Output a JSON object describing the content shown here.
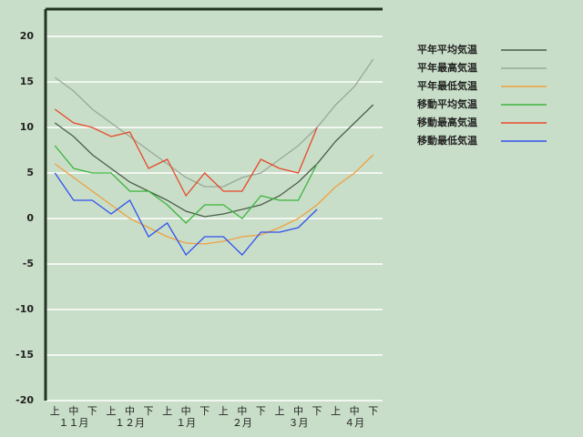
{
  "chart_data": {
    "type": "line",
    "categories": [
      "上",
      "中",
      "下",
      "上",
      "中",
      "下",
      "上",
      "中",
      "下",
      "上",
      "中",
      "下",
      "上",
      "中",
      "下",
      "上",
      "中",
      "下"
    ],
    "month_labels": [
      "１１月",
      "１２月",
      "１月",
      "２月",
      "３月",
      "４月"
    ],
    "ylim": [
      -20,
      23
    ],
    "yticks": [
      -20,
      -15,
      -10,
      -5,
      0,
      5,
      10,
      15,
      20
    ],
    "grid": true,
    "legend": "right",
    "series": [
      {
        "name": "平年平均気温",
        "color": "#4a5e4a",
        "values": [
          10.5,
          9,
          7,
          5.5,
          4,
          3,
          2,
          0.8,
          0.2,
          0.5,
          1,
          1.5,
          2.5,
          4,
          6,
          8.5,
          10.5,
          12.5
        ]
      },
      {
        "name": "平年最高気温",
        "color": "#9aa89a",
        "values": [
          15.5,
          14,
          12,
          10.5,
          9,
          7.5,
          6,
          4.5,
          3.5,
          3.5,
          4.5,
          5,
          6.5,
          8,
          10,
          12.5,
          14.5,
          17.5
        ]
      },
      {
        "name": "平年最低気温",
        "color": "#f0a040",
        "values": [
          6,
          4.5,
          3,
          1.5,
          0,
          -1,
          -2,
          -2.7,
          -2.8,
          -2.5,
          -2,
          -1.8,
          -1,
          0,
          1.5,
          3.5,
          5,
          7
        ]
      },
      {
        "name": "移動平均気温",
        "color": "#3cb43c",
        "values": [
          8,
          5.5,
          5,
          5,
          3,
          3,
          1.5,
          -0.5,
          1.5,
          1.5,
          0,
          2.5,
          2,
          2,
          6,
          null,
          null,
          null
        ]
      },
      {
        "name": "移動最高気温",
        "color": "#e84828",
        "values": [
          12,
          10.5,
          10,
          9,
          9.5,
          5.5,
          6.5,
          2.5,
          5,
          3,
          3,
          6.5,
          5.5,
          5,
          10,
          null,
          null,
          null
        ]
      },
      {
        "name": "移動最低気温",
        "color": "#3050f0",
        "values": [
          5,
          2,
          2,
          0.5,
          2,
          -2,
          -0.5,
          -4,
          -2,
          -2,
          -4,
          -1.5,
          -1.5,
          -1,
          1,
          null,
          null,
          null
        ]
      }
    ]
  }
}
